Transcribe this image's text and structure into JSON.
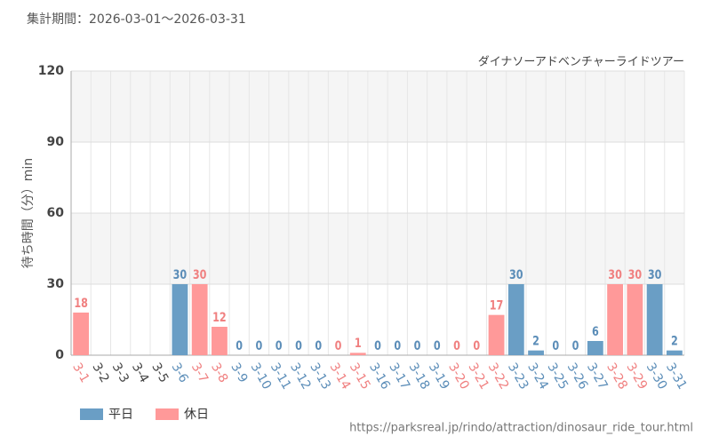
{
  "chart_data": {
    "type": "bar",
    "title": "集計期間：2026-03-01～2026-03-31",
    "subtitle": "ダイナソーアドベンチャーライドツアー",
    "y_label": "待ち時間（分）min",
    "source": "https://parksreal.jp/rindo/attraction/dinosaur_ride_tour.html",
    "categories": [
      "3-1",
      "3-2",
      "3-3",
      "3-4",
      "3-5",
      "3-6",
      "3-7",
      "3-8",
      "3-9",
      "3-10",
      "3-11",
      "3-12",
      "3-13",
      "3-14",
      "3-15",
      "3-16",
      "3-17",
      "3-18",
      "3-19",
      "3-20",
      "3-21",
      "3-22",
      "3-23",
      "3-24",
      "3-25",
      "3-26",
      "3-27",
      "3-28",
      "3-29",
      "3-30",
      "3-31"
    ],
    "series": [
      {
        "name": "平日",
        "color": "#6a9ec5",
        "label_color": "#5b8db8",
        "values": [
          null,
          null,
          null,
          null,
          null,
          30,
          null,
          null,
          0,
          0,
          0,
          0,
          0,
          null,
          null,
          0,
          0,
          0,
          0,
          null,
          null,
          null,
          30,
          2,
          0,
          0,
          6,
          null,
          null,
          30,
          2
        ]
      },
      {
        "name": "休日",
        "color": "#ff9999",
        "label_color": "#f08080",
        "values": [
          18,
          null,
          null,
          null,
          null,
          null,
          30,
          12,
          null,
          null,
          null,
          null,
          null,
          0,
          1,
          null,
          null,
          null,
          null,
          0,
          0,
          17,
          null,
          null,
          null,
          null,
          null,
          30,
          30,
          null,
          null
        ]
      }
    ],
    "ylim": [
      0,
      120
    ],
    "yticks": [
      0,
      30,
      60,
      90,
      120
    ],
    "grid": true
  }
}
